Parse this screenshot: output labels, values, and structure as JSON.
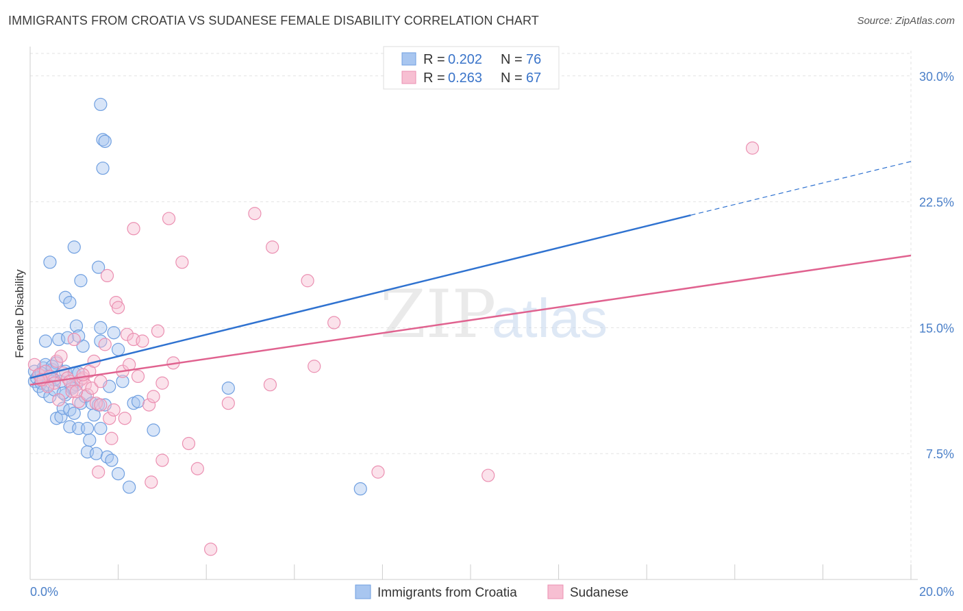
{
  "chart_data": {
    "type": "scatter",
    "title": "IMMIGRANTS FROM CROATIA VS SUDANESE FEMALE DISABILITY CORRELATION CHART",
    "source": "Source: ZipAtlas.com",
    "xlabel": "",
    "ylabel": "Female Disability",
    "xlim": [
      0,
      20
    ],
    "ylim": [
      0,
      31.5
    ],
    "yticks": [
      7.5,
      15.0,
      22.5,
      30.0
    ],
    "ytick_labels": [
      "7.5%",
      "15.0%",
      "22.5%",
      "30.0%"
    ],
    "xtick_labels": [
      "0.0%",
      "20.0%"
    ],
    "grid": true,
    "watermark": {
      "zip": "ZIP",
      "atlas": "atlas"
    },
    "legend": {
      "placement": "top-center",
      "rows": [
        {
          "r_label": "R =",
          "r_value": "0.202",
          "n_label": "N =",
          "n_value": "76"
        },
        {
          "r_label": "R =",
          "r_value": "0.263",
          "n_label": "N =",
          "n_value": "67"
        }
      ]
    },
    "series": [
      {
        "name": "Immigrants from Croatia",
        "color": "#6f9fe0",
        "fill": "#a8c6f0",
        "line_color": "#2f72d0",
        "trend": {
          "x0": 0,
          "y0": 12.0,
          "x1": 15.0,
          "y1": 21.7,
          "x_ext": 20.0,
          "y_ext": 24.9
        },
        "points": [
          [
            0.1,
            12.4
          ],
          [
            0.1,
            11.8
          ],
          [
            0.15,
            12.0
          ],
          [
            0.2,
            11.5
          ],
          [
            0.2,
            12.2
          ],
          [
            0.25,
            11.7
          ],
          [
            0.3,
            12.6
          ],
          [
            0.3,
            11.2
          ],
          [
            0.35,
            14.2
          ],
          [
            0.35,
            12.8
          ],
          [
            0.4,
            11.6
          ],
          [
            0.45,
            12.1
          ],
          [
            0.45,
            10.9
          ],
          [
            0.5,
            12.5
          ],
          [
            0.55,
            11.3
          ],
          [
            0.6,
            9.6
          ],
          [
            0.6,
            12.9
          ],
          [
            0.65,
            14.3
          ],
          [
            0.7,
            11.8
          ],
          [
            0.7,
            9.7
          ],
          [
            0.75,
            10.2
          ],
          [
            0.8,
            12.4
          ],
          [
            0.8,
            11.0
          ],
          [
            0.85,
            14.4
          ],
          [
            0.9,
            10.1
          ],
          [
            0.9,
            9.1
          ],
          [
            0.95,
            11.5
          ],
          [
            1.0,
            12.3
          ],
          [
            1.0,
            9.9
          ],
          [
            1.05,
            11.6
          ],
          [
            1.1,
            9.0
          ],
          [
            1.1,
            12.3
          ],
          [
            1.15,
            10.5
          ],
          [
            1.2,
            13.9
          ],
          [
            1.25,
            10.9
          ],
          [
            1.3,
            7.6
          ],
          [
            1.3,
            9.0
          ],
          [
            1.35,
            8.3
          ],
          [
            1.4,
            10.5
          ],
          [
            1.45,
            9.8
          ],
          [
            1.5,
            7.5
          ],
          [
            1.55,
            10.4
          ],
          [
            1.6,
            14.2
          ],
          [
            1.6,
            9.0
          ],
          [
            1.6,
            15.0
          ],
          [
            1.7,
            10.4
          ],
          [
            1.75,
            7.3
          ],
          [
            1.8,
            11.5
          ],
          [
            1.85,
            7.1
          ],
          [
            1.9,
            14.7
          ],
          [
            2.0,
            6.3
          ],
          [
            2.0,
            13.7
          ],
          [
            2.1,
            11.8
          ],
          [
            2.25,
            5.5
          ],
          [
            2.35,
            10.5
          ],
          [
            2.45,
            10.6
          ],
          [
            0.45,
            18.9
          ],
          [
            0.8,
            16.8
          ],
          [
            0.9,
            16.5
          ],
          [
            1.0,
            19.8
          ],
          [
            1.15,
            17.8
          ],
          [
            1.55,
            18.6
          ],
          [
            1.05,
            15.1
          ],
          [
            1.6,
            28.3
          ],
          [
            1.65,
            26.2
          ],
          [
            1.7,
            26.1
          ],
          [
            1.65,
            24.5
          ],
          [
            0.95,
            11.4
          ],
          [
            0.55,
            11.9
          ],
          [
            0.75,
            11.1
          ],
          [
            0.25,
            12.3
          ],
          [
            4.5,
            11.4
          ],
          [
            2.8,
            8.9
          ],
          [
            7.5,
            5.4
          ],
          [
            1.1,
            14.5
          ],
          [
            0.5,
            12.7
          ]
        ]
      },
      {
        "name": "Sudanese",
        "color": "#eb8fb1",
        "fill": "#f7bfd2",
        "line_color": "#e0628f",
        "trend": {
          "x0": 0,
          "y0": 11.6,
          "x1": 20.0,
          "y1": 19.3,
          "x_ext": 20.0,
          "y_ext": 19.3
        },
        "points": [
          [
            0.1,
            12.8
          ],
          [
            0.2,
            12.2
          ],
          [
            0.3,
            11.9
          ],
          [
            0.35,
            12.4
          ],
          [
            0.45,
            12.1
          ],
          [
            0.55,
            11.7
          ],
          [
            0.6,
            13.0
          ],
          [
            0.65,
            10.7
          ],
          [
            0.7,
            13.3
          ],
          [
            0.75,
            12.3
          ],
          [
            0.85,
            12.0
          ],
          [
            0.9,
            11.8
          ],
          [
            0.95,
            11.2
          ],
          [
            1.0,
            14.3
          ],
          [
            1.1,
            10.6
          ],
          [
            1.15,
            11.9
          ],
          [
            1.2,
            12.0
          ],
          [
            1.25,
            11.6
          ],
          [
            1.3,
            11.0
          ],
          [
            1.35,
            12.4
          ],
          [
            1.4,
            11.4
          ],
          [
            1.45,
            13.0
          ],
          [
            1.5,
            10.5
          ],
          [
            1.55,
            6.4
          ],
          [
            1.6,
            10.4
          ],
          [
            1.7,
            14.0
          ],
          [
            1.75,
            18.1
          ],
          [
            1.8,
            9.6
          ],
          [
            1.85,
            8.4
          ],
          [
            1.9,
            10.1
          ],
          [
            1.95,
            16.5
          ],
          [
            2.0,
            16.2
          ],
          [
            2.1,
            12.4
          ],
          [
            2.15,
            9.6
          ],
          [
            2.2,
            14.6
          ],
          [
            2.25,
            12.8
          ],
          [
            2.35,
            20.9
          ],
          [
            2.35,
            14.3
          ],
          [
            2.45,
            12.1
          ],
          [
            2.55,
            14.2
          ],
          [
            2.7,
            10.4
          ],
          [
            2.75,
            5.8
          ],
          [
            2.8,
            10.9
          ],
          [
            2.9,
            14.8
          ],
          [
            3.0,
            11.7
          ],
          [
            3.0,
            7.1
          ],
          [
            3.15,
            21.5
          ],
          [
            3.25,
            12.9
          ],
          [
            3.45,
            18.9
          ],
          [
            3.6,
            8.1
          ],
          [
            3.8,
            6.6
          ],
          [
            4.1,
            1.8
          ],
          [
            4.5,
            10.5
          ],
          [
            5.1,
            21.8
          ],
          [
            5.45,
            11.6
          ],
          [
            5.5,
            19.8
          ],
          [
            6.3,
            17.8
          ],
          [
            6.45,
            12.7
          ],
          [
            6.9,
            15.3
          ],
          [
            7.9,
            6.4
          ],
          [
            10.4,
            6.2
          ],
          [
            16.4,
            25.7
          ],
          [
            1.05,
            11.2
          ],
          [
            0.4,
            11.5
          ],
          [
            1.2,
            12.2
          ],
          [
            0.25,
            11.9
          ],
          [
            1.6,
            11.8
          ]
        ]
      }
    ]
  }
}
